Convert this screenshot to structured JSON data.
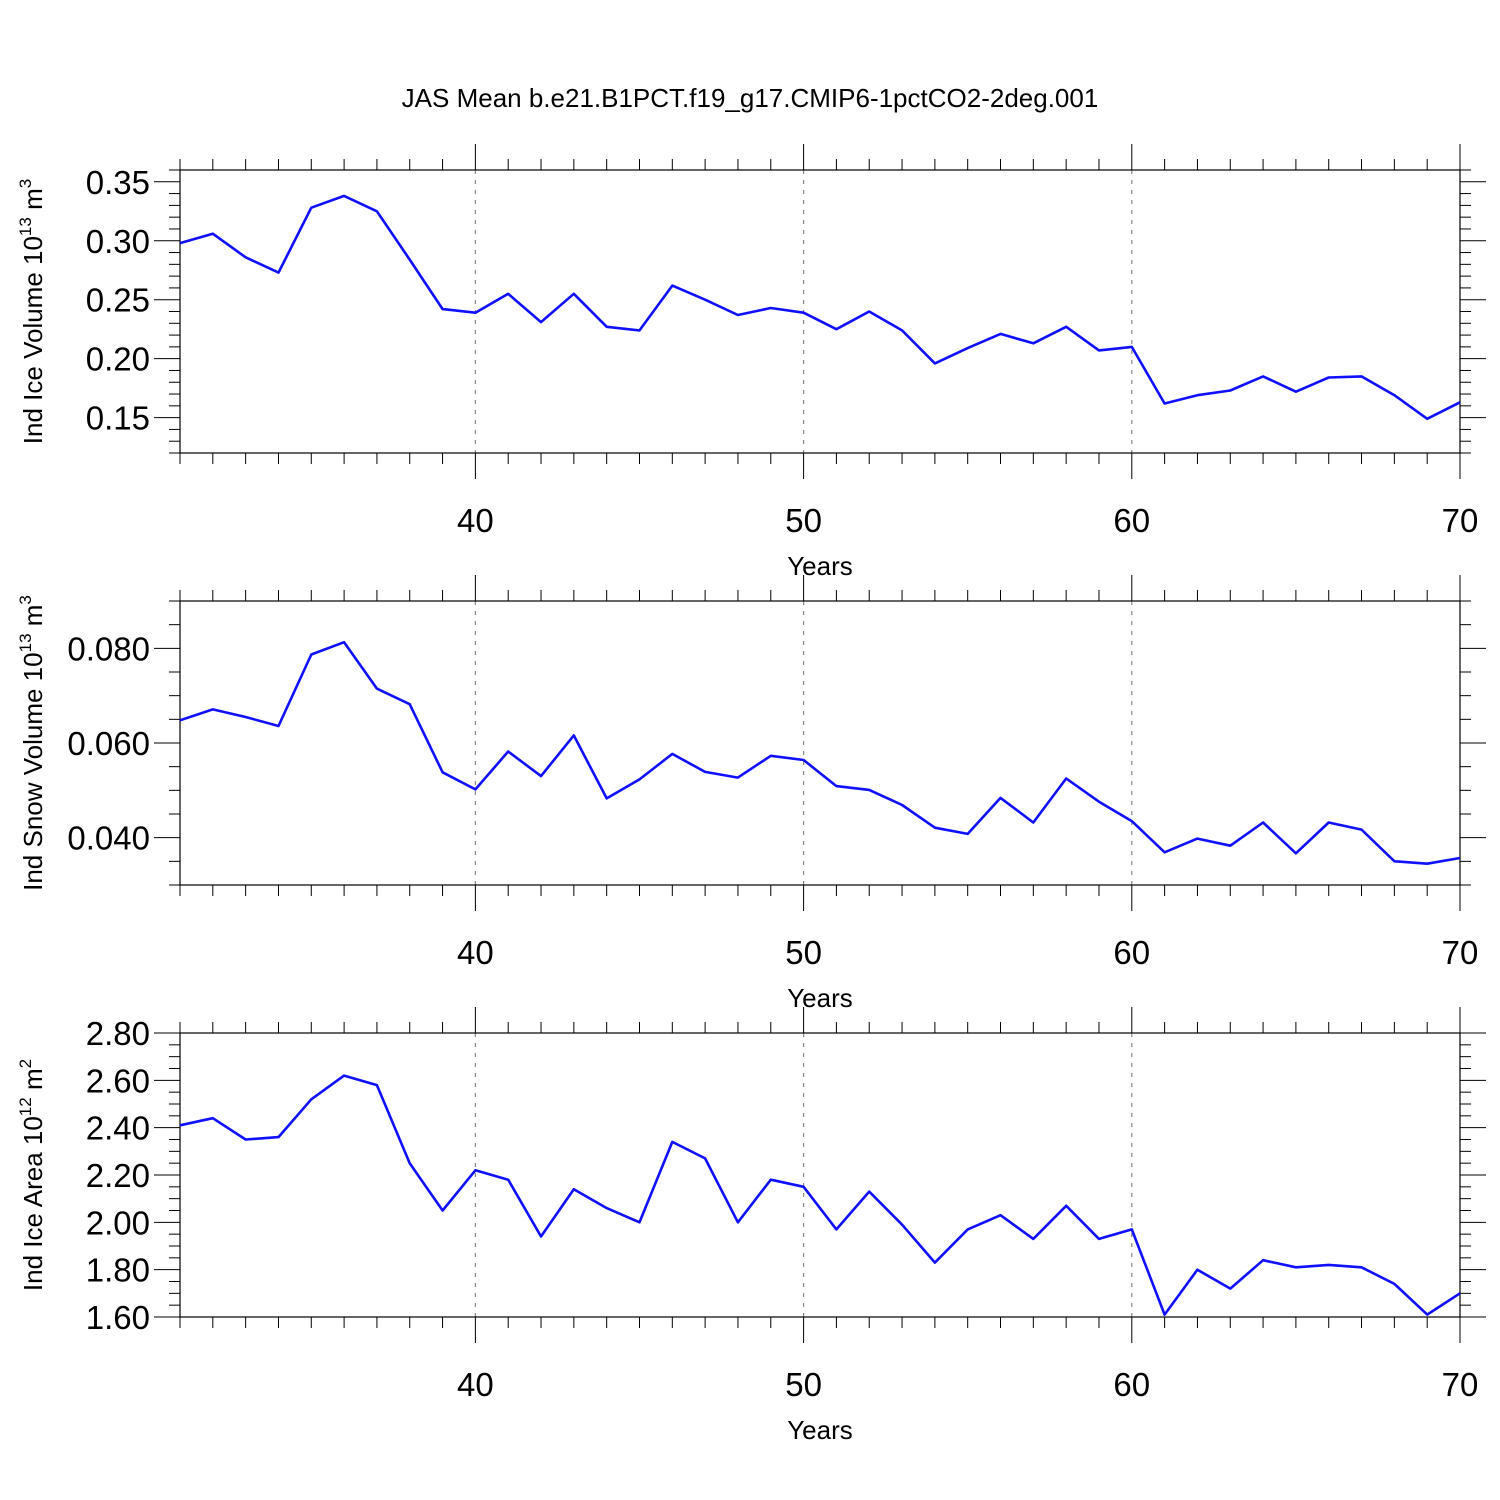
{
  "title": "JAS Mean b.e21.B1PCT.f19_g17.CMIP6-1pctCO2-2deg.001",
  "colors": {
    "series": "#1010ff",
    "frame": "#000000",
    "grid": "#888888"
  },
  "chart_data": [
    {
      "type": "line",
      "xlabel": "Years",
      "ylabel": "Ind Ice Volume 10",
      "ylabel_exp": "13",
      "ylabel_unit": " m",
      "ylabel_unit_exp": "3",
      "xlim": [
        31,
        70
      ],
      "ylim": [
        0.12,
        0.36
      ],
      "xticks": [
        40,
        50,
        60,
        70
      ],
      "xticklabels": [
        "40",
        "50",
        "60",
        "70"
      ],
      "yticks": [
        0.15,
        0.2,
        0.25,
        0.3,
        0.35
      ],
      "yticklabels": [
        "0.15",
        "0.20",
        "0.25",
        "0.30",
        "0.35"
      ],
      "yminor": 0.01,
      "grid_x": true,
      "x": [
        31,
        32,
        33,
        34,
        35,
        36,
        37,
        38,
        39,
        40,
        41,
        42,
        43,
        44,
        45,
        46,
        47,
        48,
        49,
        50,
        51,
        52,
        53,
        54,
        55,
        56,
        57,
        58,
        59,
        60,
        61,
        62,
        63,
        64,
        65,
        66,
        67,
        68,
        69,
        70
      ],
      "y": [
        0.298,
        0.306,
        0.286,
        0.273,
        0.328,
        0.338,
        0.325,
        0.284,
        0.242,
        0.239,
        0.255,
        0.231,
        0.255,
        0.227,
        0.224,
        0.262,
        0.25,
        0.237,
        0.243,
        0.239,
        0.225,
        0.24,
        0.224,
        0.196,
        0.209,
        0.221,
        0.213,
        0.227,
        0.207,
        0.21,
        0.162,
        0.169,
        0.173,
        0.185,
        0.172,
        0.184,
        0.185,
        0.169,
        0.149,
        0.163
      ]
    },
    {
      "type": "line",
      "xlabel": "Years",
      "ylabel": "Ind Snow Volume 10",
      "ylabel_exp": "13",
      "ylabel_unit": " m",
      "ylabel_unit_exp": "3",
      "xlim": [
        31,
        70
      ],
      "ylim": [
        0.03,
        0.09
      ],
      "xticks": [
        40,
        50,
        60,
        70
      ],
      "xticklabels": [
        "40",
        "50",
        "60",
        "70"
      ],
      "yticks": [
        0.04,
        0.06,
        0.08
      ],
      "yticklabels": [
        "0.040",
        "0.060",
        "0.080"
      ],
      "yminor": 0.005,
      "grid_x": true,
      "x": [
        31,
        32,
        33,
        34,
        35,
        36,
        37,
        38,
        39,
        40,
        41,
        42,
        43,
        44,
        45,
        46,
        47,
        48,
        49,
        50,
        51,
        52,
        53,
        54,
        55,
        56,
        57,
        58,
        59,
        60,
        61,
        62,
        63,
        64,
        65,
        66,
        67,
        68,
        69,
        70
      ],
      "y": [
        0.0648,
        0.0671,
        0.0655,
        0.0636,
        0.0787,
        0.0813,
        0.0715,
        0.0682,
        0.0538,
        0.0502,
        0.0582,
        0.053,
        0.0616,
        0.0483,
        0.0523,
        0.0577,
        0.0539,
        0.0527,
        0.0573,
        0.0564,
        0.0509,
        0.0501,
        0.0469,
        0.0421,
        0.0408,
        0.0484,
        0.0432,
        0.0525,
        0.0476,
        0.0435,
        0.0369,
        0.0398,
        0.0383,
        0.0432,
        0.0367,
        0.0432,
        0.0417,
        0.035,
        0.0345,
        0.0357
      ]
    },
    {
      "type": "line",
      "xlabel": "Years",
      "ylabel": "Ind Ice Area 10",
      "ylabel_exp": "12",
      "ylabel_unit": " m",
      "ylabel_unit_exp": "2",
      "xlim": [
        31,
        70
      ],
      "ylim": [
        1.6,
        2.8
      ],
      "xticks": [
        40,
        50,
        60,
        70
      ],
      "xticklabels": [
        "40",
        "50",
        "60",
        "70"
      ],
      "yticks": [
        1.6,
        1.8,
        2.0,
        2.2,
        2.4,
        2.6,
        2.8
      ],
      "yticklabels": [
        "1.60",
        "1.80",
        "2.00",
        "2.20",
        "2.40",
        "2.60",
        "2.80"
      ],
      "yminor": 0.05,
      "grid_x": true,
      "x": [
        31,
        32,
        33,
        34,
        35,
        36,
        37,
        38,
        39,
        40,
        41,
        42,
        43,
        44,
        45,
        46,
        47,
        48,
        49,
        50,
        51,
        52,
        53,
        54,
        55,
        56,
        57,
        58,
        59,
        60,
        61,
        62,
        63,
        64,
        65,
        66,
        67,
        68,
        69,
        70
      ],
      "y": [
        2.41,
        2.44,
        2.35,
        2.36,
        2.52,
        2.62,
        2.58,
        2.25,
        2.05,
        2.22,
        2.18,
        1.94,
        2.14,
        2.06,
        2.0,
        2.34,
        2.27,
        2.0,
        2.18,
        2.15,
        1.97,
        2.13,
        1.99,
        1.83,
        1.97,
        2.03,
        1.93,
        2.07,
        1.93,
        1.97,
        1.61,
        1.8,
        1.72,
        1.84,
        1.81,
        1.82,
        1.81,
        1.74,
        1.61,
        1.7
      ]
    }
  ]
}
